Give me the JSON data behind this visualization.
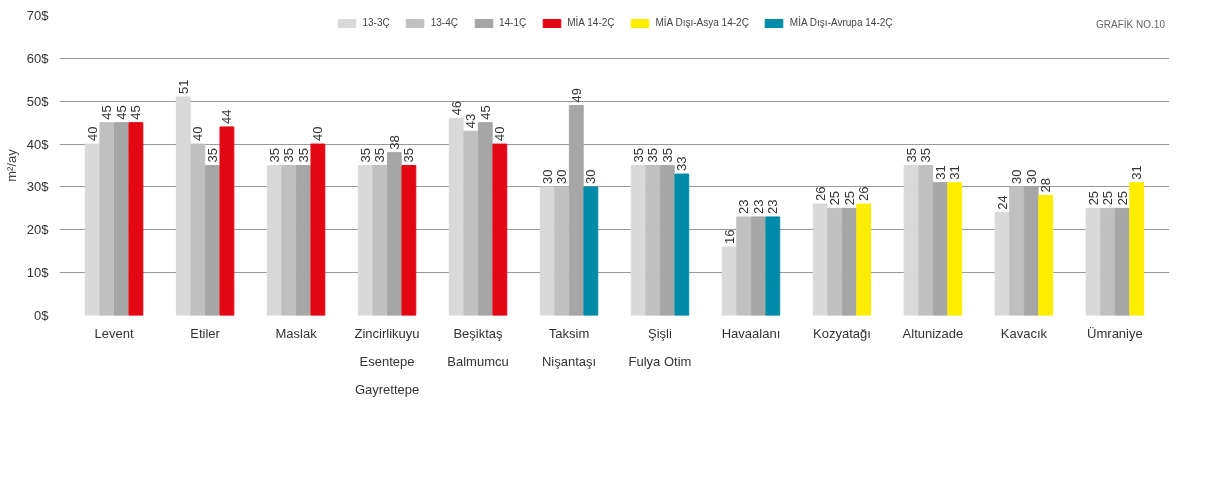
{
  "chart_data": {
    "type": "bar",
    "ylabel": "m²/ay",
    "categories": [
      "Levent",
      "Etiler",
      "Maslak",
      "Zincirlikuyu\nEsentepe\nGayrettepe",
      "Beşiktaş\nBalmumcu",
      "Taksim\nNişantaşı",
      "Şişli\nFulya Otim",
      "Havaalanı",
      "Kozyatağı",
      "Altunizade",
      "Kavacık",
      "Ümraniye"
    ],
    "series": [
      {
        "name": "13-3Ç",
        "color": "#d9d9d9",
        "values": [
          40,
          51,
          35,
          35,
          46,
          30,
          35,
          16,
          26,
          35,
          24,
          25
        ]
      },
      {
        "name": "13-4Ç",
        "color": "#c0c0c0",
        "values": [
          45,
          40,
          35,
          35,
          43,
          30,
          35,
          23,
          25,
          35,
          30,
          25
        ]
      },
      {
        "name": "14-1Ç",
        "color": "#a6a6a6",
        "values": [
          45,
          35,
          35,
          38,
          45,
          49,
          35,
          23,
          25,
          31,
          30,
          25
        ]
      },
      {
        "name": "MİA 14-2Ç",
        "color": "#e30613",
        "values": [
          45,
          44,
          40,
          35,
          40,
          null,
          null,
          null,
          null,
          null,
          null,
          null
        ]
      },
      {
        "name": "MİA Dışı-Asya 14-2Ç",
        "color": "#ffed00",
        "values": [
          null,
          null,
          null,
          null,
          null,
          null,
          null,
          null,
          26,
          31,
          28,
          31
        ]
      },
      {
        "name": "MİA Dışı-Avrupa 14-2Ç",
        "color": "#008ca8",
        "values": [
          null,
          null,
          null,
          null,
          null,
          30,
          33,
          23,
          null,
          null,
          null,
          null
        ]
      }
    ],
    "ylim": [
      0,
      70
    ],
    "yticks": [
      {
        "value": 0,
        "label": "0$"
      },
      {
        "value": 10,
        "label": "10$"
      },
      {
        "value": 20,
        "label": "20$"
      },
      {
        "value": 30,
        "label": "30$"
      },
      {
        "value": 40,
        "label": "40$"
      },
      {
        "value": 50,
        "label": "50$"
      },
      {
        "value": 60,
        "label": "60$"
      },
      {
        "value": 70,
        "label": "70$"
      }
    ],
    "grid": "y",
    "legend": "top",
    "data_labels": true,
    "annotations": [
      "GRAFİK NO.10"
    ]
  }
}
